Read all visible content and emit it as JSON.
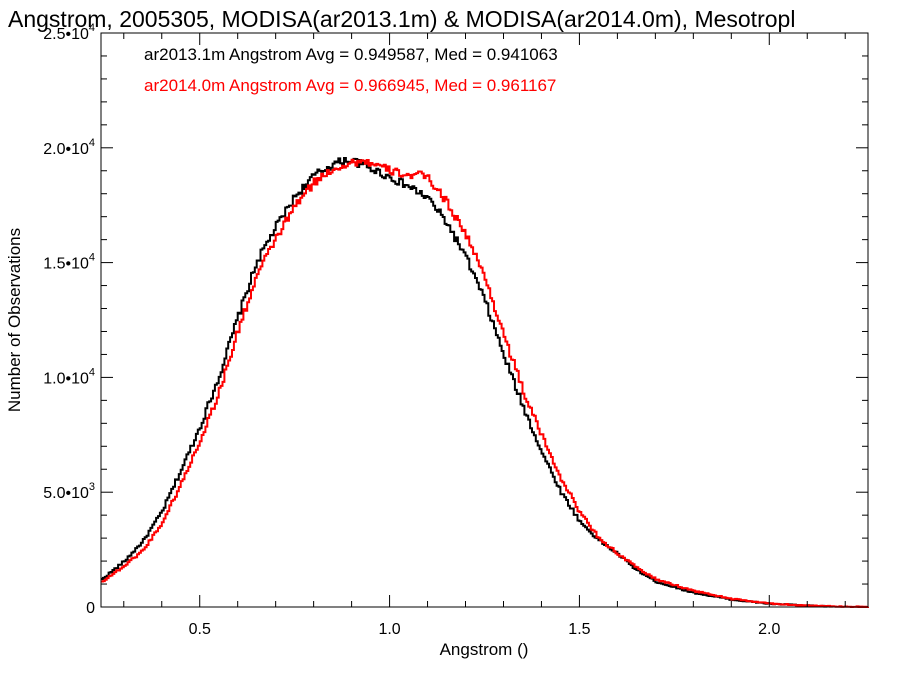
{
  "chart_data": {
    "type": "line",
    "step": true,
    "title": "Angstrom, 2005305, MODISA(ar2013.1m) & MODISA(ar2014.0m), Mesotropl",
    "xlabel": "Angstrom ()",
    "ylabel": "Number of Observations",
    "xlim": [
      0.24,
      2.26
    ],
    "ylim": [
      0,
      25000
    ],
    "x_ticks": [
      0.5,
      1.0,
      1.5,
      2.0
    ],
    "x_tick_labels": [
      "0.5",
      "1.0",
      "1.5",
      "2.0"
    ],
    "y_ticks": [
      0,
      5000,
      10000,
      15000,
      20000,
      25000
    ],
    "y_tick_labels": [
      {
        "mantissa": "0",
        "exp": ""
      },
      {
        "mantissa": "5.0•10",
        "exp": "3"
      },
      {
        "mantissa": "1.0•10",
        "exp": "4"
      },
      {
        "mantissa": "1.5•10",
        "exp": "4"
      },
      {
        "mantissa": "2.0•10",
        "exp": "4"
      },
      {
        "mantissa": "2.5•10",
        "exp": "4"
      }
    ],
    "grid": false,
    "annotations": [
      {
        "text": "ar2013.1m Angstrom Avg = 0.949587, Med = 0.941063",
        "color": "#000000"
      },
      {
        "text": "ar2014.0m Angstrom Avg = 0.966945, Med = 0.961167",
        "color": "#ff0000"
      }
    ],
    "series": [
      {
        "color": "#000000",
        "x": [
          0.24,
          0.3,
          0.35,
          0.4,
          0.45,
          0.5,
          0.55,
          0.6,
          0.65,
          0.7,
          0.75,
          0.8,
          0.85,
          0.88,
          0.9,
          0.92,
          0.95,
          1.0,
          1.05,
          1.08,
          1.1,
          1.15,
          1.2,
          1.25,
          1.3,
          1.35,
          1.4,
          1.45,
          1.5,
          1.55,
          1.6,
          1.65,
          1.7,
          1.8,
          1.9,
          2.0,
          2.1,
          2.15
        ],
        "y": [
          1200,
          2000,
          2900,
          4200,
          6000,
          7900,
          10100,
          12700,
          15100,
          16600,
          17900,
          18800,
          19300,
          19450,
          19450,
          19300,
          19100,
          18700,
          18300,
          18000,
          17800,
          16700,
          15200,
          13300,
          10900,
          8700,
          6700,
          5000,
          3700,
          2900,
          2300,
          1600,
          1100,
          620,
          320,
          140,
          60,
          20
        ]
      },
      {
        "color": "#ff0000",
        "x": [
          0.24,
          0.3,
          0.35,
          0.4,
          0.45,
          0.5,
          0.55,
          0.6,
          0.65,
          0.7,
          0.75,
          0.8,
          0.85,
          0.9,
          0.93,
          0.95,
          1.0,
          1.05,
          1.08,
          1.1,
          1.15,
          1.2,
          1.25,
          1.3,
          1.35,
          1.4,
          1.45,
          1.5,
          1.55,
          1.6,
          1.65,
          1.7,
          1.8,
          1.9,
          2.0,
          2.1,
          2.2,
          2.26
        ],
        "y": [
          1100,
          1800,
          2500,
          3700,
          5400,
          7300,
          9400,
          12100,
          14500,
          16100,
          17500,
          18500,
          19100,
          19350,
          19450,
          19300,
          19000,
          18800,
          18800,
          18700,
          17600,
          16200,
          14300,
          11800,
          9400,
          7400,
          5600,
          4100,
          3000,
          2300,
          1700,
          1200,
          700,
          350,
          150,
          60,
          15,
          0
        ]
      }
    ]
  }
}
